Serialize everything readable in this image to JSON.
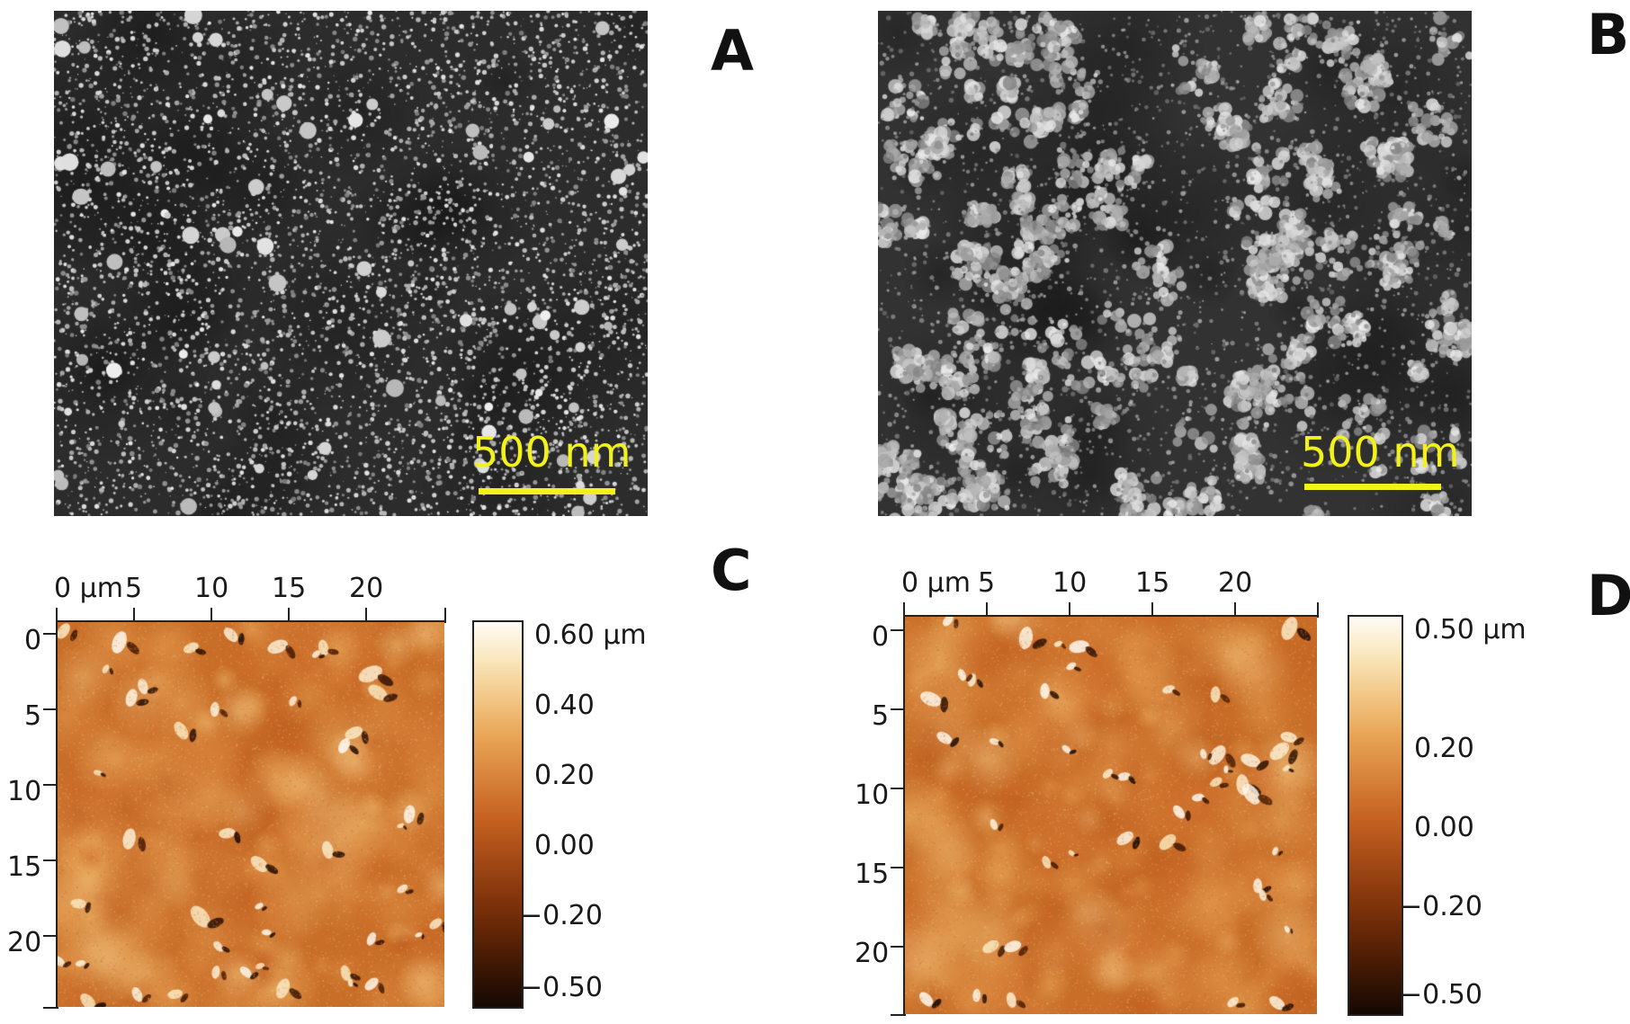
{
  "panels": {
    "a": {
      "letter": "A",
      "scale_bar": "500 nm"
    },
    "b": {
      "letter": "B",
      "scale_bar": "500 nm"
    },
    "c": {
      "letter": "C",
      "top_ticks": [
        "0 μm",
        "5",
        "10",
        "15",
        "20"
      ],
      "left_ticks": [
        "0",
        "5",
        "10",
        "15",
        "20"
      ],
      "colorbar": [
        "0.60 μm",
        "0.40",
        "0.20",
        "0.00",
        "−0.20",
        "−0.50"
      ]
    },
    "d": {
      "letter": "D",
      "top_ticks": [
        "0 μm",
        "5",
        "10",
        "15",
        "20"
      ],
      "left_ticks": [
        "0",
        "5",
        "10",
        "15",
        "20"
      ],
      "colorbar": [
        "0.50 μm",
        "0.20",
        "0.00",
        "−0.20",
        "−0.50"
      ]
    }
  },
  "colors": {
    "scale": "#f2f21a",
    "afm_low": "#1a0a02",
    "afm_mid": "#b85a1a",
    "afm_high": "#fffaf0"
  }
}
